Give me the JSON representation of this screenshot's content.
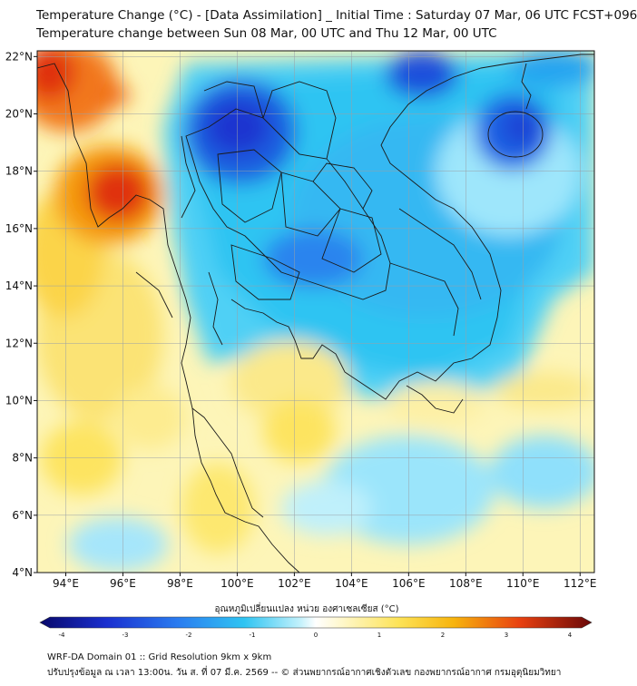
{
  "title": {
    "line1": "Temperature Change (°C) - [Data Assimilation] _ Initial Time : Saturday 07 Mar, 06 UTC FCST+096",
    "line2": "Temperature change between Sun 08 Mar, 00 UTC and Thu 12 Mar, 00 UTC"
  },
  "map": {
    "lon_range": [
      93,
      112.5
    ],
    "lat_range": [
      4,
      22.2
    ],
    "lon_ticks": [
      "94°E",
      "96°E",
      "98°E",
      "100°E",
      "102°E",
      "104°E",
      "106°E",
      "108°E",
      "110°E",
      "112°E"
    ],
    "lat_ticks": [
      "4°N",
      "6°N",
      "8°N",
      "10°N",
      "12°N",
      "14°N",
      "16°N",
      "18°N",
      "20°N",
      "22°N"
    ],
    "lon_tick_values": [
      94,
      96,
      98,
      100,
      102,
      104,
      106,
      108,
      110,
      112
    ],
    "lat_tick_values": [
      4,
      6,
      8,
      10,
      12,
      14,
      16,
      18,
      20,
      22
    ]
  },
  "colorbar": {
    "label": "อุณหภูมิเปลี่ยนแปลง หน่วย องศาเซลเซียส (°C)",
    "ticks": [
      "-4",
      "-3",
      "-2",
      "-1",
      "0",
      "1",
      "2",
      "3",
      "4"
    ],
    "tick_values": [
      -4,
      -3,
      -2,
      -1,
      0,
      1,
      2,
      3,
      4
    ],
    "min": -4,
    "max": 4
  },
  "footer": {
    "line1": "WRF-DA Domain 01 :: Grid Resolution 9km x 9km",
    "line2": "ปรับปรุงข้อมูล ณ เวลา 13:00น. วัน ส. ที่ 07 มี.ค. 2569 -- © ส่วนพยากรณ์อากาศเชิงตัวเลข กองพยากรณ์อากาศ กรมอุตุนิยมวิทยา"
  },
  "colors": {
    "very_cold": "#1a2fcf",
    "cold": "#2a7cf0",
    "cool": "#2fc4f2",
    "light_cool": "#8fe6fb",
    "neutral": "#f2fbff",
    "warm_light": "#fdf19a",
    "warm": "#f7c60d",
    "hot": "#f56a10",
    "very_hot": "#d81010"
  }
}
